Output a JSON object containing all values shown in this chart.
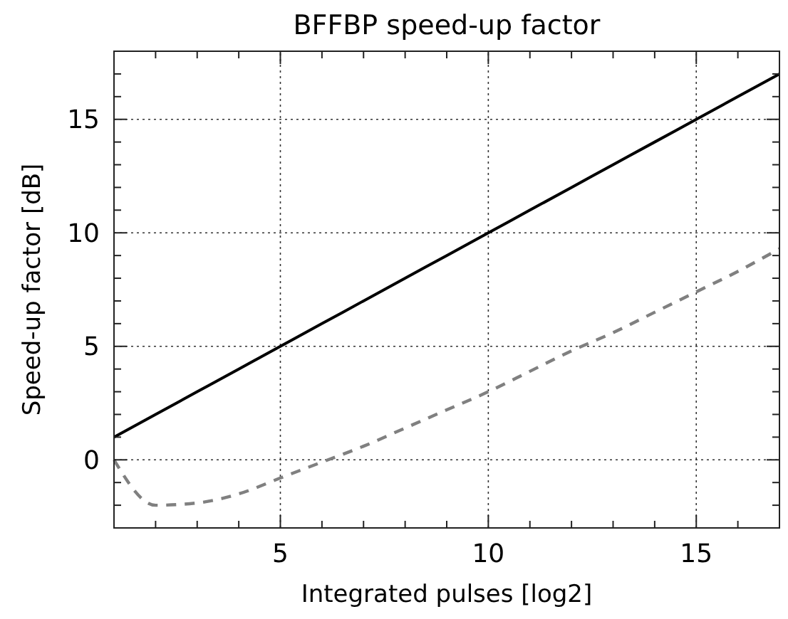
{
  "chart_data": {
    "type": "line",
    "title": "BFFBP speed-up factor",
    "xlabel": "Integrated pulses [log2]",
    "ylabel": "Speed-up factor [dB]",
    "x": [
      1,
      2,
      3,
      4,
      5,
      6,
      7,
      8,
      9,
      10,
      11,
      12,
      13,
      14,
      15,
      16,
      17
    ],
    "series": [
      {
        "color": "#000000",
        "line_style": "solid",
        "values": [
          1,
          2,
          3,
          4,
          5,
          6,
          7,
          8,
          9,
          10,
          11,
          12,
          13,
          14,
          15,
          16,
          17
        ]
      },
      {
        "color": "#808080",
        "line_style": "dashed",
        "values": [
          0,
          -2,
          -1.9,
          -1.5,
          -0.8,
          -0.1,
          0.6,
          1.4,
          2.2,
          3.0,
          3.9,
          4.8,
          5.6,
          6.5,
          7.4,
          8.3,
          9.3
        ]
      }
    ],
    "xlim": [
      1,
      17
    ],
    "ylim": [
      -3,
      18
    ],
    "xticks": [
      {
        "value": 2,
        "label": null
      },
      {
        "value": 3,
        "label": null
      },
      {
        "value": 4,
        "label": null
      },
      5,
      {
        "value": 6,
        "label": null
      },
      {
        "value": 7,
        "label": null
      },
      {
        "value": 8,
        "label": null
      },
      {
        "value": 9,
        "label": null
      },
      10,
      {
        "value": 11,
        "label": null
      },
      {
        "value": 12,
        "label": null
      },
      {
        "value": 13,
        "label": null
      },
      {
        "value": 14,
        "label": null
      },
      15,
      {
        "value": 16,
        "label": null
      }
    ],
    "yticks": [
      {
        "value": -2,
        "label": null
      },
      {
        "value": -1,
        "label": null
      },
      0,
      {
        "value": 1,
        "label": null
      },
      {
        "value": 2,
        "label": null
      },
      {
        "value": 3,
        "label": null
      },
      {
        "value": 4,
        "label": null
      },
      5,
      {
        "value": 6,
        "label": null
      },
      {
        "value": 7,
        "label": null
      },
      {
        "value": 8,
        "label": null
      },
      {
        "value": 9,
        "label": null
      },
      10,
      {
        "value": 11,
        "label": null
      },
      {
        "value": 12,
        "label": null
      },
      {
        "value": 13,
        "label": null
      },
      {
        "value": 14,
        "label": null
      },
      15,
      {
        "value": 16,
        "label": null
      },
      {
        "value": 17,
        "label": null
      }
    ],
    "grid": true
  }
}
